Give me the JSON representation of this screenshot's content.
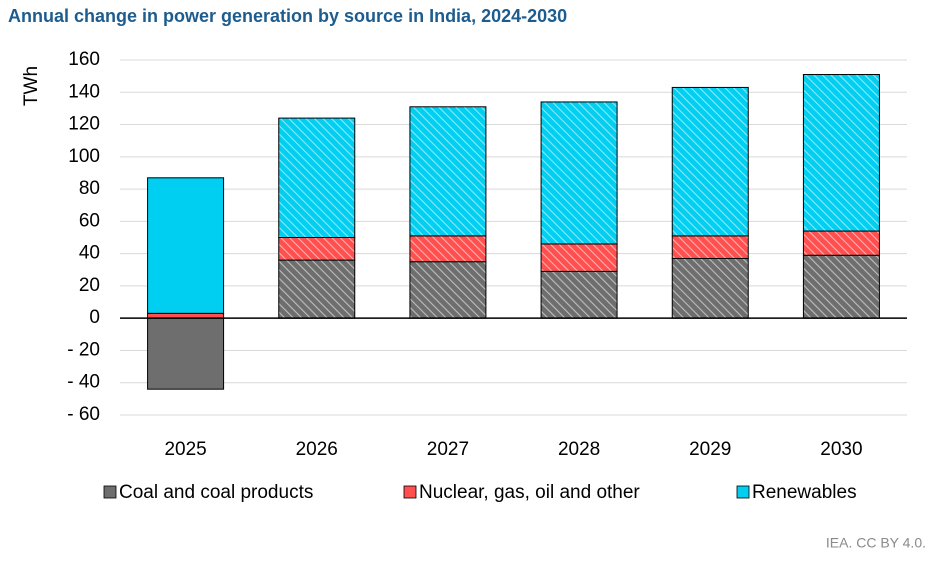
{
  "chart_data": {
    "type": "stacked-bar",
    "title": "Annual change in power generation by source in India, 2024-2030",
    "y_label": "TWh",
    "footer": "IEA. CC BY 4.0.",
    "categories": [
      "2025",
      "2026",
      "2027",
      "2028",
      "2029",
      "2030"
    ],
    "hatched": [
      false,
      true,
      true,
      true,
      true,
      true
    ],
    "series": [
      {
        "name": "Coal and coal products",
        "color": "#6e6e6e",
        "values": [
          -44,
          36,
          35,
          29,
          37,
          39
        ]
      },
      {
        "name": "Nuclear, gas, oil and other",
        "color": "#ff4f4f",
        "values": [
          3,
          14,
          16,
          17,
          14,
          15
        ]
      },
      {
        "name": "Renewables",
        "color": "#00cff2",
        "values": [
          84,
          74,
          80,
          88,
          92,
          97
        ]
      }
    ],
    "ylim": [
      -60,
      160
    ],
    "yticks": [
      {
        "value": -60,
        "label": "- 60"
      },
      {
        "value": -40,
        "label": "- 40"
      },
      {
        "value": -20,
        "label": "- 20"
      },
      0,
      20,
      40,
      60,
      80,
      100,
      120,
      140,
      160
    ],
    "grid": true
  }
}
